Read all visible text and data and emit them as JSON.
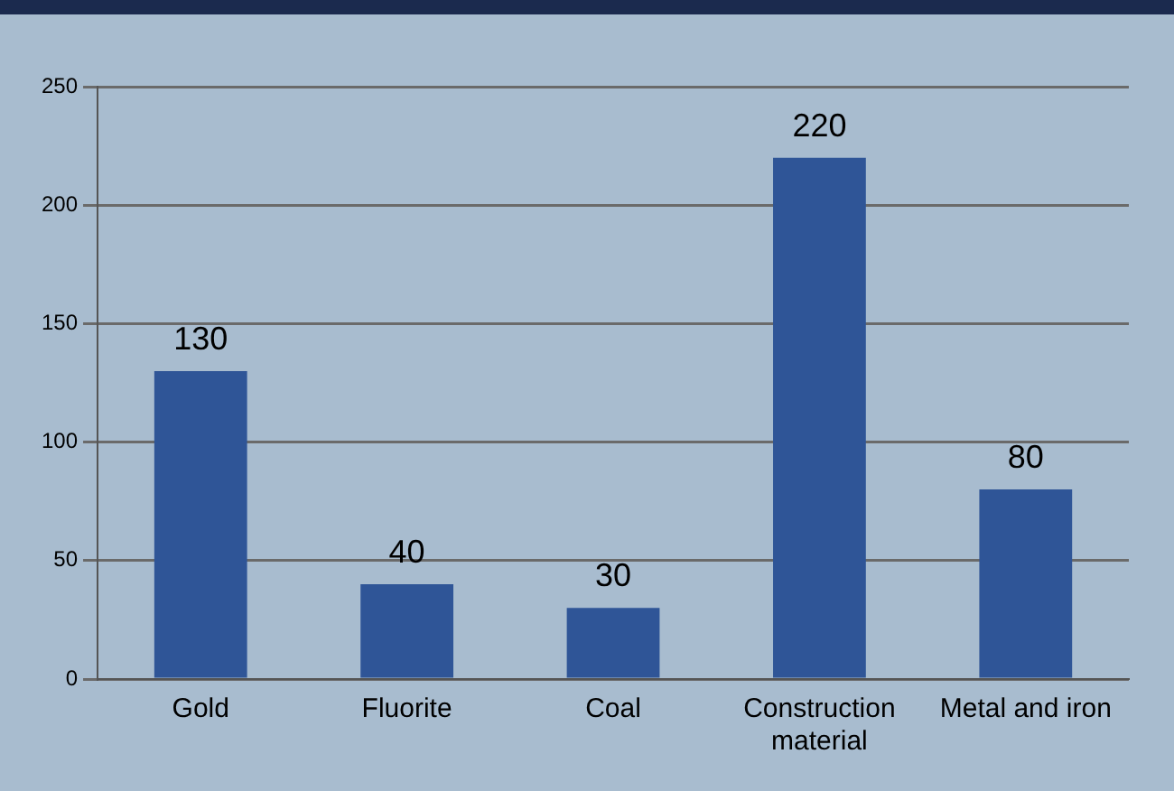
{
  "chart_data": {
    "type": "bar",
    "categories": [
      "Gold",
      "Fluorite",
      "Coal",
      "Construction material",
      "Metal and iron"
    ],
    "values": [
      130,
      40,
      30,
      220,
      80
    ],
    "color": "#2f5597",
    "ylim": [
      0,
      250
    ],
    "yticks": [
      0,
      50,
      100,
      150,
      200,
      250
    ],
    "grid": "y",
    "data_labels": true
  }
}
